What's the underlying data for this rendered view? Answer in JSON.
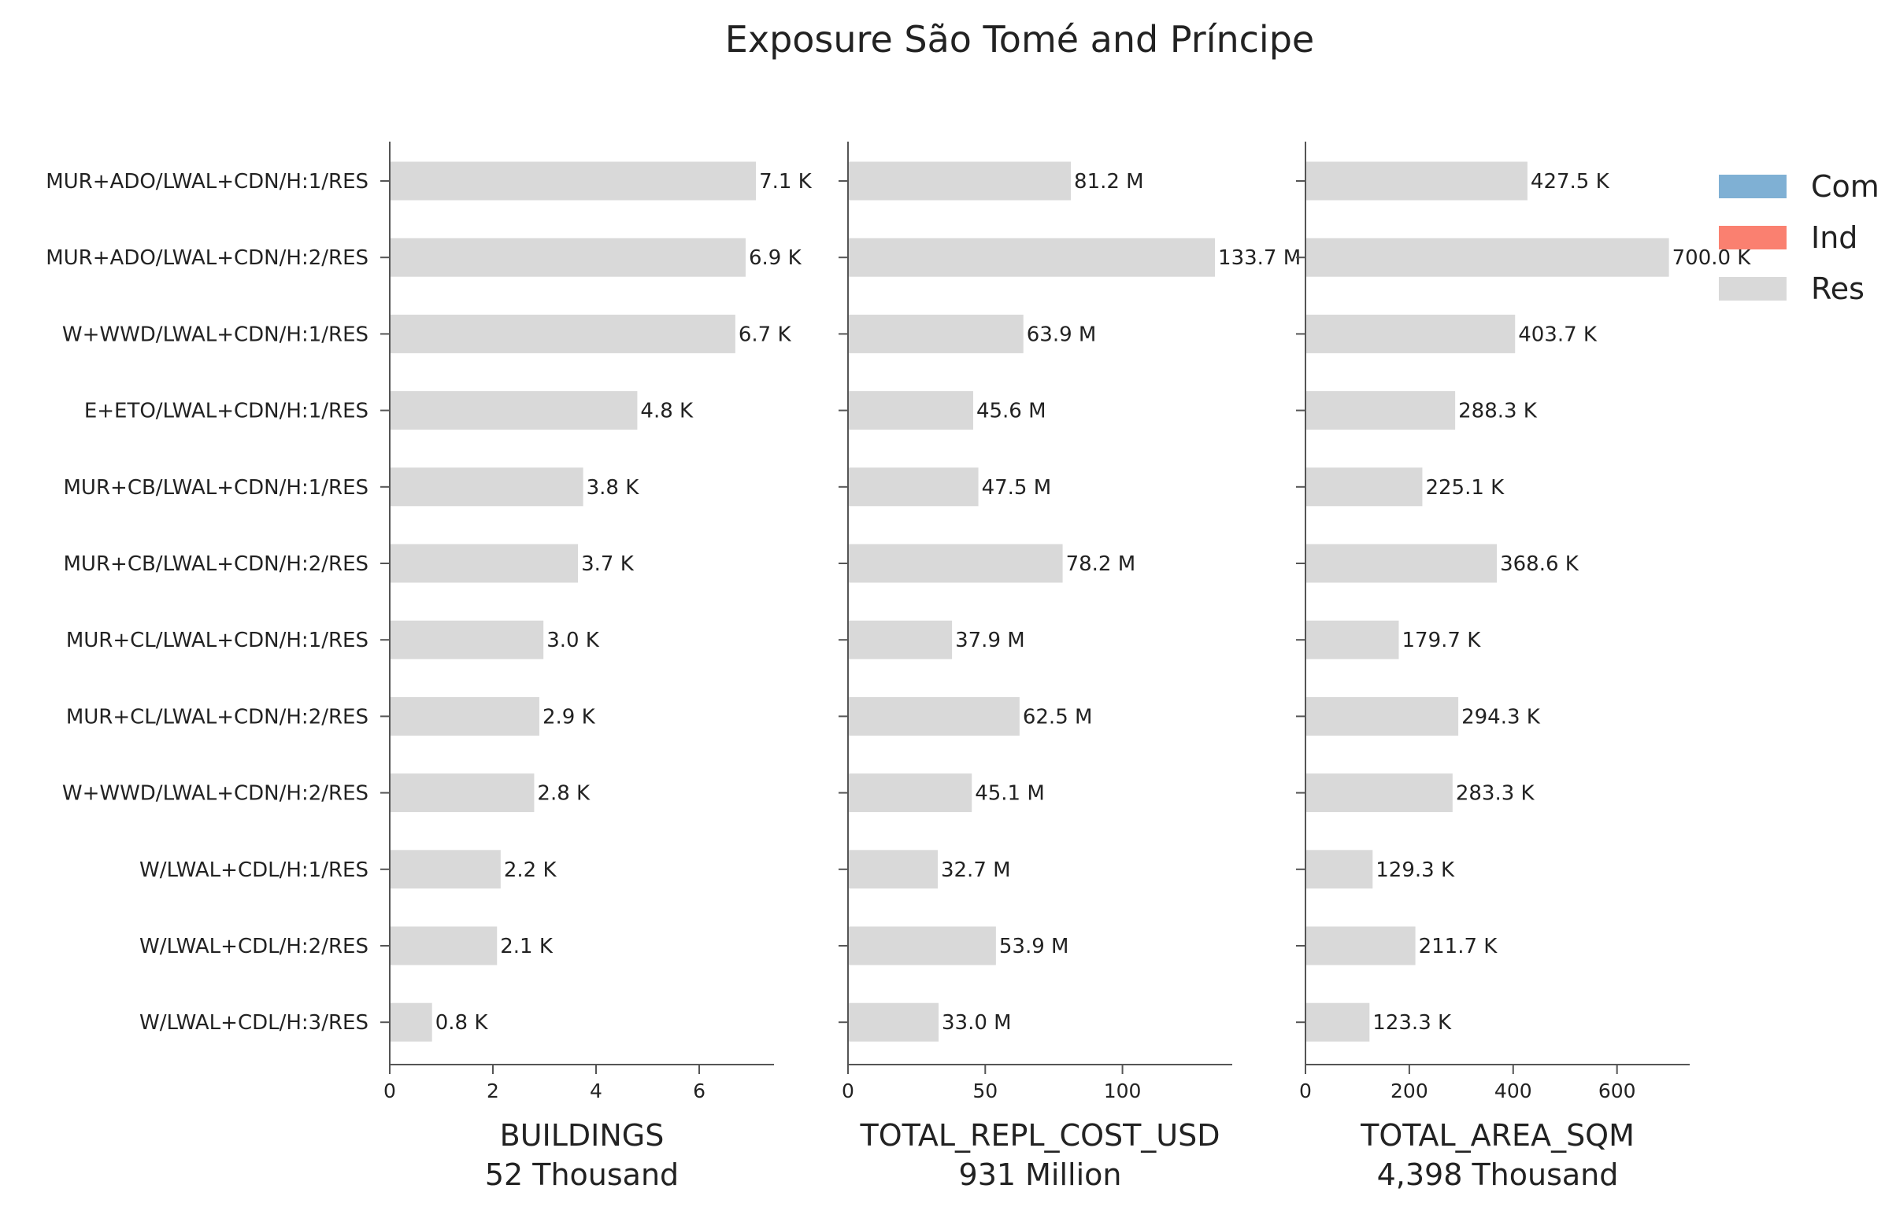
{
  "title": "Exposure São Tomé and Príncipe",
  "chart_data": {
    "type": "bar",
    "orientation": "horizontal",
    "stacked": true,
    "categories": [
      "MUR+ADO/LWAL+CDN/H:1/RES",
      "MUR+ADO/LWAL+CDN/H:2/RES",
      "W+WWD/LWAL+CDN/H:1/RES",
      "E+ETO/LWAL+CDN/H:1/RES",
      "MUR+CB/LWAL+CDN/H:1/RES",
      "MUR+CB/LWAL+CDN/H:2/RES",
      "MUR+CL/LWAL+CDN/H:1/RES",
      "MUR+CL/LWAL+CDN/H:2/RES",
      "W+WWD/LWAL+CDN/H:2/RES",
      "W/LWAL+CDL/H:1/RES",
      "W/LWAL+CDL/H:2/RES",
      "W/LWAL+CDL/H:3/RES"
    ],
    "legend": {
      "placement": "top-right",
      "entries": [
        {
          "name": "Com",
          "color": "#7fb0d4"
        },
        {
          "name": "Ind",
          "color": "#fa8070"
        },
        {
          "name": "Res",
          "color": "#d9d9d9"
        }
      ]
    },
    "panels": [
      {
        "xlabel": "BUILDINGS",
        "total": "52 Thousand",
        "xlim": [
          0,
          7.45
        ],
        "ticks": [
          0,
          2,
          4,
          6
        ],
        "tick_labels": [
          "0",
          "2",
          "4",
          "6"
        ],
        "series": [
          {
            "name": "Res",
            "values": [
              7.1,
              6.9,
              6.7,
              4.8,
              3.75,
              3.65,
              2.98,
              2.9,
              2.8,
              2.15,
              2.08,
              0.82
            ]
          }
        ],
        "data_labels": [
          "7.1 K",
          "6.9 K",
          "6.7 K",
          "4.8 K",
          "3.8 K",
          "3.7 K",
          "3.0 K",
          "2.9 K",
          "2.8 K",
          "2.2 K",
          "2.1 K",
          "0.8 K"
        ]
      },
      {
        "xlabel": "TOTAL_REPL_COST_USD",
        "total": "931 Million",
        "xlim": [
          0,
          140
        ],
        "ticks": [
          0,
          50,
          100
        ],
        "tick_labels": [
          "0",
          "50",
          "100"
        ],
        "series": [
          {
            "name": "Res",
            "values": [
              81.2,
              133.7,
              63.9,
              45.6,
              47.5,
              78.2,
              37.9,
              62.5,
              45.1,
              32.7,
              53.9,
              33.0
            ]
          }
        ],
        "data_labels": [
          "81.2 M",
          "133.7 M",
          "63.9 M",
          "45.6 M",
          "47.5 M",
          "78.2 M",
          "37.9 M",
          "62.5 M",
          "45.1 M",
          "32.7 M",
          "53.9 M",
          "33.0 M"
        ]
      },
      {
        "xlabel": "TOTAL_AREA_SQM",
        "total": "4,398 Thousand",
        "xlim": [
          0,
          740
        ],
        "ticks": [
          0,
          200,
          400,
          600
        ],
        "tick_labels": [
          "0",
          "200",
          "400",
          "600"
        ],
        "series": [
          {
            "name": "Res",
            "values": [
              427.5,
              700.0,
              403.7,
              288.3,
              225.1,
              368.6,
              179.7,
              294.3,
              283.3,
              129.3,
              211.7,
              123.3
            ]
          }
        ],
        "data_labels": [
          "427.5 K",
          "700.0 K",
          "403.7 K",
          "288.3 K",
          "225.1 K",
          "368.6 K",
          "179.7 K",
          "294.3 K",
          "283.3 K",
          "129.3 K",
          "211.7 K",
          "123.3 K"
        ]
      }
    ]
  }
}
